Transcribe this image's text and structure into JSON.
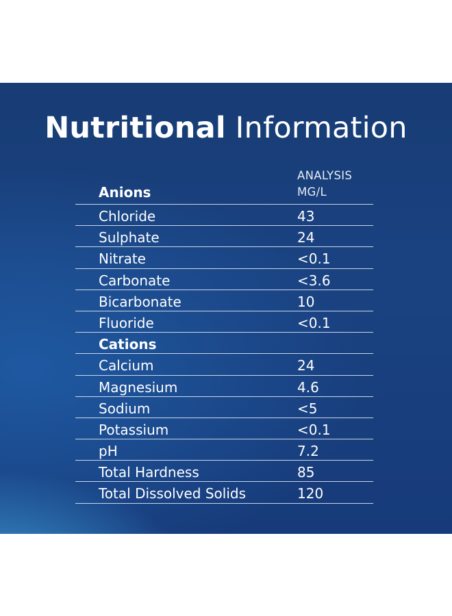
{
  "title": {
    "bold": "Nutritional",
    "light": "Information"
  },
  "header": {
    "section": "Anions",
    "column_line1": "ANALYSIS",
    "column_line2": "MG/L"
  },
  "anions": [
    {
      "name": "Chloride",
      "value": "43"
    },
    {
      "name": "Sulphate",
      "value": "24"
    },
    {
      "name": "Nitrate",
      "value": "<0.1"
    },
    {
      "name": "Carbonate",
      "value": "<3.6"
    },
    {
      "name": "Bicarbonate",
      "value": "10"
    },
    {
      "name": "Fluoride",
      "value": "<0.1"
    }
  ],
  "cations_label": "Cations",
  "cations": [
    {
      "name": "Calcium",
      "value": "24"
    },
    {
      "name": "Magnesium",
      "value": "4.6"
    },
    {
      "name": "Sodium",
      "value": "<5"
    },
    {
      "name": "Potassium",
      "value": "<0.1"
    },
    {
      "name": "pH",
      "value": "7.2"
    },
    {
      "name": "Total Hardness",
      "value": "85"
    },
    {
      "name": "Total Dissolved Solids",
      "value": "120"
    }
  ]
}
